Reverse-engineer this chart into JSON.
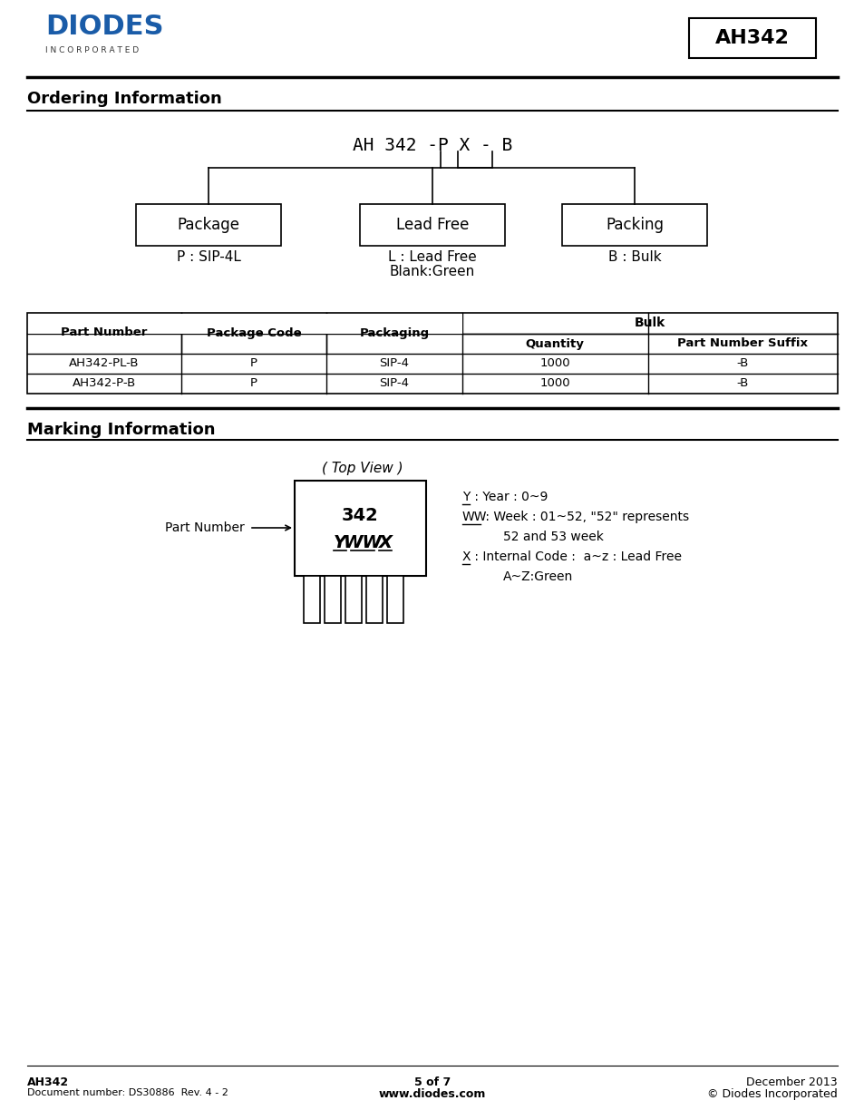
{
  "title_box": "AH342",
  "section1_title": "Ordering Information",
  "section2_title": "Marking Information",
  "boxes": [
    "Package",
    "Lead Free",
    "Packing"
  ],
  "box_label_p": "P : SIP-4L",
  "box_label_l1": "L : Lead Free",
  "box_label_l2": "Blank:Green",
  "box_label_b": "B : Bulk",
  "table_headers": [
    "Part Number",
    "Package Code",
    "Packaging",
    "Bulk"
  ],
  "table_subheaders": [
    "Quantity",
    "Part Number Suffix"
  ],
  "table_rows": [
    [
      "AH342-PL-B",
      "P",
      "SIP-4",
      "1000",
      "-B"
    ],
    [
      "AH342-P-B",
      "P",
      "SIP-4",
      "1000",
      "-B"
    ]
  ],
  "top_view_label": "( Top View )",
  "chip_marking_line1": "342",
  "part_number_arrow_label": "Part Number",
  "footer_left_line1": "AH342",
  "footer_left_line2": "Document number: DS30886  Rev. 4 - 2",
  "footer_center_line1": "5 of 7",
  "footer_center_line2": "www.diodes.com",
  "footer_right_line1": "December 2013",
  "footer_right_line2": "© Diodes Incorporated",
  "diodes_logo_color": "#1a5ca8",
  "bg_color": "#ffffff",
  "text_color": "#000000"
}
